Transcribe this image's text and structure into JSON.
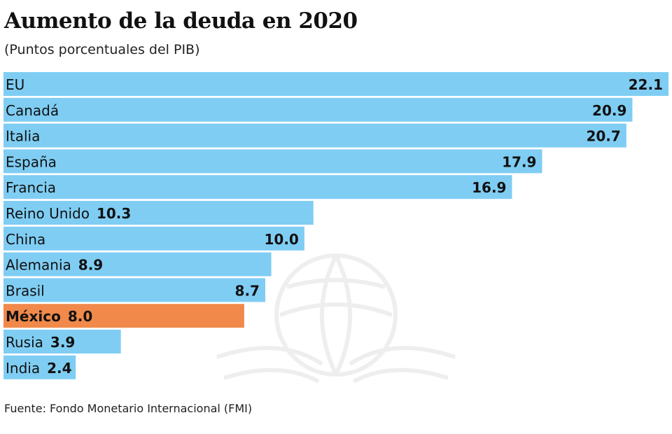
{
  "chart_data": {
    "type": "bar",
    "orientation": "horizontal",
    "title": "Aumento de la deuda en 2020",
    "subtitle": "(Puntos porcentuales del PIB)",
    "source": "Fuente: Fondo Monetario Internacional (FMI)",
    "categories": [
      "EU",
      "Canadá",
      "Italia",
      "España",
      "Francia",
      "Reino Unido",
      "China",
      "Alemania",
      "Brasil",
      "México",
      "Rusia",
      "India"
    ],
    "values": [
      22.1,
      20.9,
      20.7,
      17.9,
      16.9,
      10.3,
      10.0,
      8.9,
      8.7,
      8.0,
      3.9,
      2.4
    ],
    "value_labels": [
      "22.1",
      "20.9",
      "20.7",
      "17.9",
      "16.9",
      "10.3",
      "10.0",
      "8.9",
      "8.7",
      "8.0",
      "3.9",
      "2.4"
    ],
    "highlight": "México",
    "xlim": [
      0,
      22.1
    ],
    "grid": false,
    "colors": {
      "bar": "#7fcdf3",
      "highlight": "#f0894a"
    }
  }
}
